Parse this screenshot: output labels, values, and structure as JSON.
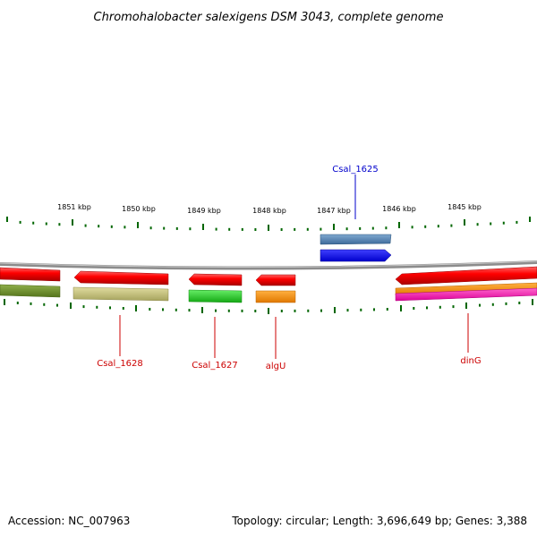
{
  "title": "Chromohalobacter salexigens DSM 3043, complete genome",
  "footer": {
    "accession": "Accession: NC_007963",
    "summary": "Topology: circular; Length: 3,696,649 bp; Genes: 3,388"
  },
  "ticks": {
    "labels": [
      "1851 kbp",
      "1850 kbp",
      "1849 kbp",
      "1848 kbp",
      "1847 kbp",
      "1846 kbp",
      "1845 kbp"
    ]
  },
  "genes": {
    "labels": {
      "csal1625": "Csal_1625",
      "csal1628": "Csal_1628",
      "csal1627": "Csal_1627",
      "algu": "algU",
      "ding": "dinG"
    }
  },
  "colors": {
    "forward_label": "#0000cc",
    "reverse_label": "#cc0000",
    "tick": "#006600",
    "backbone": "#888888"
  }
}
